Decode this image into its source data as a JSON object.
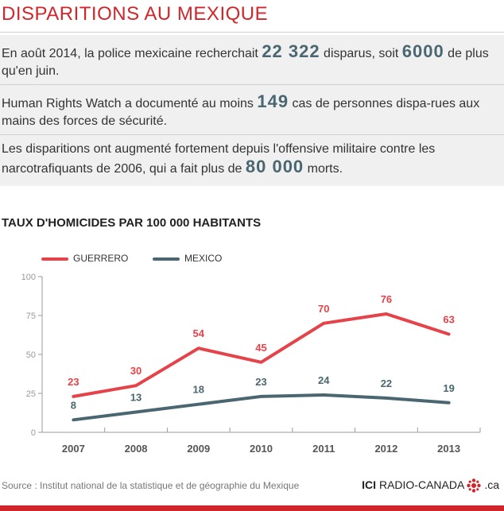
{
  "header": {
    "title": "DISPARITIONS AU MEXIQUE"
  },
  "facts": [
    {
      "before": "En août 2014, la police mexicaine recherchait ",
      "highlight1": "22 322",
      "middle": " disparus, soit ",
      "highlight2": "6000",
      "after": " de plus qu'en juin."
    },
    {
      "before": "Human Rights Watch a documenté au moins ",
      "highlight1": "149",
      "after": " cas de personnes dispa-rues aux mains des forces de sécurité."
    },
    {
      "before": "Les disparitions ont augmenté fortement depuis l'offensive militaire contre les narcotrafiquants de 2006, qui a fait plus de ",
      "highlight1": "80 000",
      "after": " morts."
    }
  ],
  "chart_data": {
    "type": "line",
    "title": "TAUX D'HOMICIDES PAR 100 000 HABITANTS",
    "categories": [
      "2007",
      "2008",
      "2009",
      "2010",
      "2011",
      "2012",
      "2013"
    ],
    "series": [
      {
        "name": "GUERRERO",
        "values": [
          23,
          30,
          54,
          45,
          70,
          76,
          63
        ],
        "color": "#e5434a"
      },
      {
        "name": "MEXICO",
        "values": [
          8,
          13,
          18,
          23,
          24,
          22,
          19
        ],
        "color": "#4a6670"
      }
    ],
    "ylim": [
      0,
      100
    ],
    "yticks": [
      0,
      25,
      50,
      75,
      100
    ],
    "grid": false,
    "legend": "top-left"
  },
  "footer": {
    "source": "Source : Institut national de la statistique et de géographie du Mexique",
    "logo_ici": "ICI",
    "logo_brand": "RADIO-CANADA",
    "logo_domain": ".ca"
  },
  "colors": {
    "accent": "#d0262b",
    "highlight": "#4a6670",
    "panel": "#f0f0f0"
  }
}
